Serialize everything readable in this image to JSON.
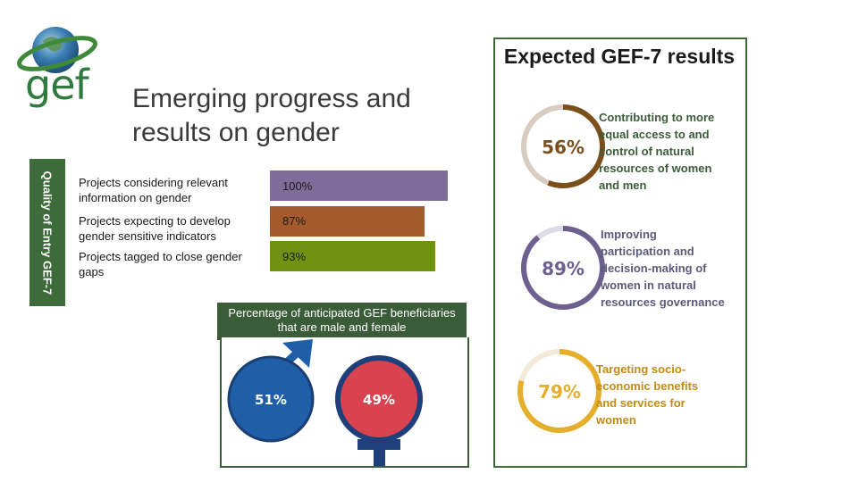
{
  "logo": {
    "text": "gef"
  },
  "title": "Emerging progress and results on gender",
  "side_tab": "Quality of Entry GEF-7",
  "bars": [
    {
      "label": "Projects considering relevant information on gender",
      "value": "100%",
      "fraction": 1.0,
      "color": "#7e6d99"
    },
    {
      "label": "Projects expecting to develop gender sensitive indicators",
      "value": "87%",
      "fraction": 0.87,
      "color": "#a55a2c"
    },
    {
      "label": "Projects tagged to close gender gaps",
      "value": "93%",
      "fraction": 0.93,
      "color": "#6f9210"
    }
  ],
  "beneficiaries": {
    "header": "Percentage of anticipated GEF beneficiaries that are male and female",
    "male_pct": "51%",
    "female_pct": "49%",
    "male_color": "#1f5fa8",
    "female_color": "#d8434f"
  },
  "results": {
    "title": "Expected GEF-7 results",
    "items": [
      {
        "pct": "56%",
        "fraction": 0.56,
        "color": "#7a4f1c",
        "track": "#d9ccc0",
        "text": "Contributing to more equal access to and control of natural resources of women and men"
      },
      {
        "pct": "89%",
        "fraction": 0.89,
        "color": "#6d5f8e",
        "track": "#dcdce6",
        "text": "Improving participation and decision-making of women in natural resources governance"
      },
      {
        "pct": "79%",
        "fraction": 0.79,
        "color": "#e5ae2c",
        "track": "#f3ead9",
        "text": "Targeting socio-economic benefits and services for women"
      }
    ]
  }
}
